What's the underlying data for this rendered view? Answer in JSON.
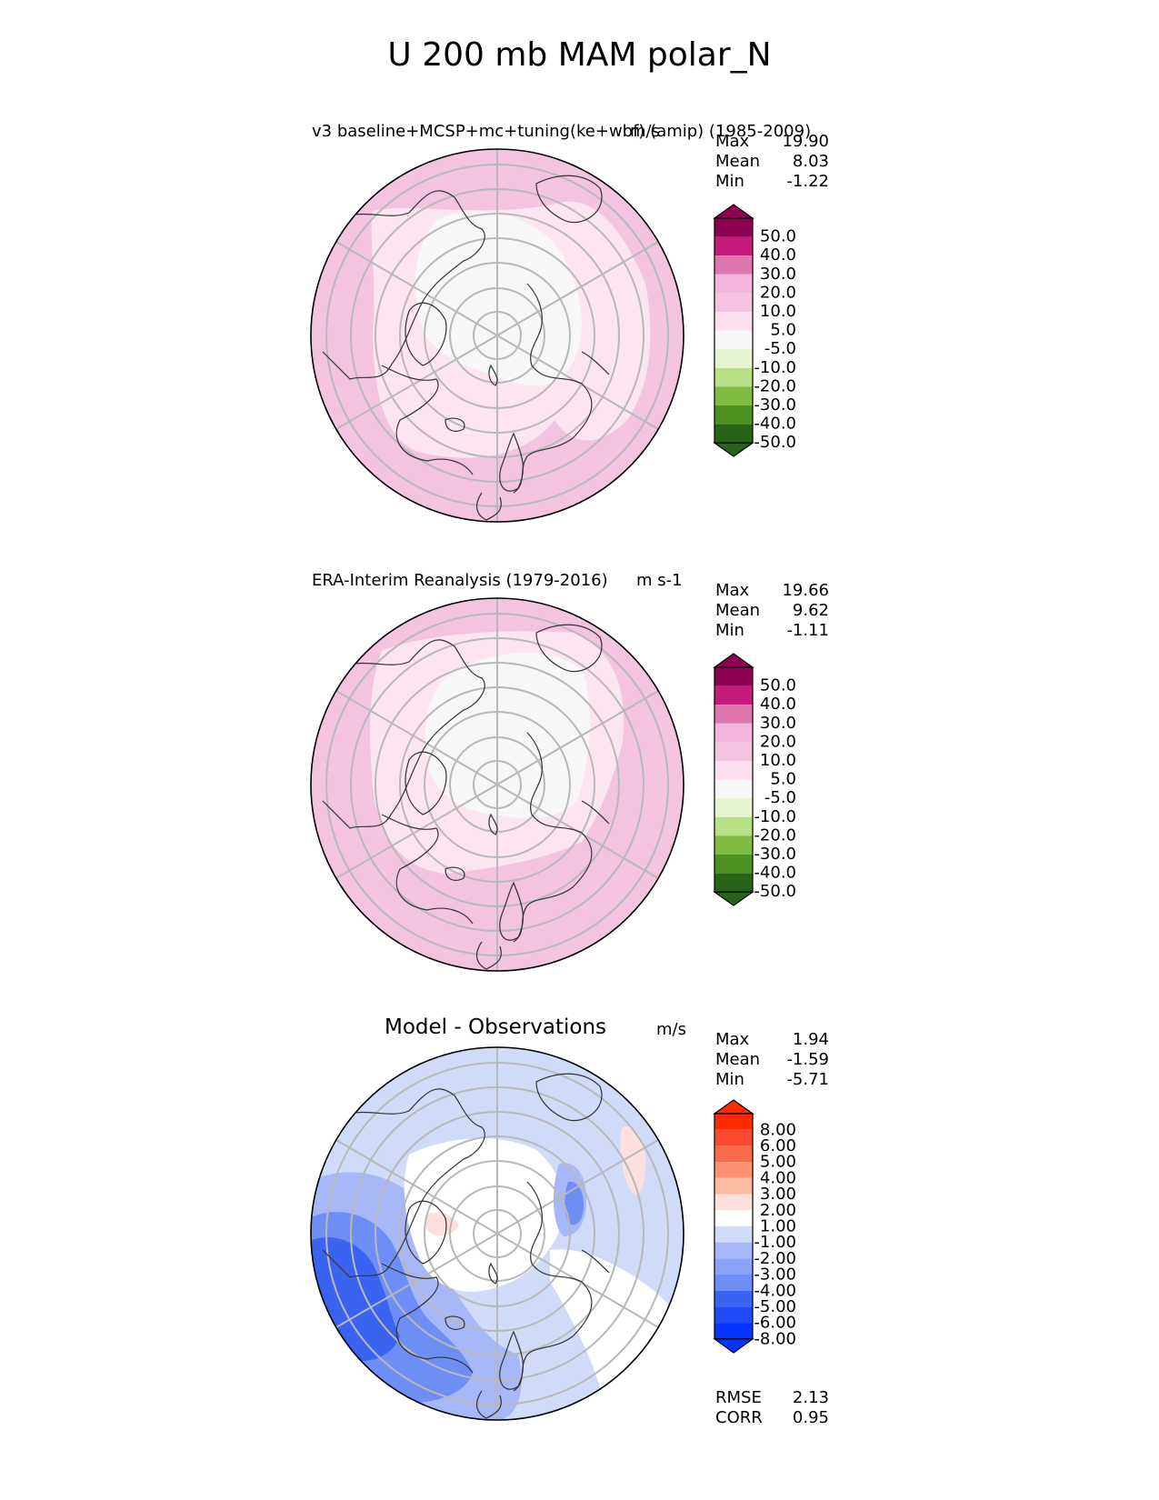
{
  "figure": {
    "title": "U 200 mb MAM polar_N",
    "colors": {
      "pink": [
        "#8e0152",
        "#c51b7d",
        "#de77ae",
        "#f1b6da",
        "#fde0ef"
      ],
      "neutral": "#f7f7f7",
      "green": [
        "#e6f5d0",
        "#b8e186",
        "#7fbc41",
        "#4d9221",
        "#276419"
      ],
      "diff": [
        "#0432ff",
        "#3a63f2",
        "#6f8ef5",
        "#a6b8f8",
        "#d0daf9",
        "#ffffff",
        "#fde0dd",
        "#fcbba1",
        "#fc9272",
        "#fb6a4a",
        "#ff2a00"
      ],
      "grid": "#b8b8b8",
      "coast": "#333333"
    }
  },
  "chart_data": [
    {
      "type": "heatmap",
      "projection": "north-polar-stereographic",
      "title": "v3 baseline+MCSP+mc+tuning(ke+wbf) (amip) (1985-2009)",
      "units": "m/s",
      "stats": [
        {
          "label": "Max",
          "value": "19.90"
        },
        {
          "label": "Mean",
          "value": "8.03"
        },
        {
          "label": "Min",
          "value": "-1.22"
        }
      ],
      "colorbar_ticks": [
        "50.0",
        "40.0",
        "30.0",
        "20.0",
        "10.0",
        "5.0",
        "-5.0",
        "-10.0",
        "-20.0",
        "-30.0",
        "-40.0",
        "-50.0"
      ],
      "levels": [
        -50,
        -40,
        -30,
        -20,
        -10,
        -5,
        5,
        10,
        20,
        30,
        40,
        50
      ]
    },
    {
      "type": "heatmap",
      "projection": "north-polar-stereographic",
      "title": "ERA-Interim Reanalysis (1979-2016)",
      "units": "m s-1",
      "stats": [
        {
          "label": "Max",
          "value": "19.66"
        },
        {
          "label": "Mean",
          "value": "9.62"
        },
        {
          "label": "Min",
          "value": "-1.11"
        }
      ],
      "colorbar_ticks": [
        "50.0",
        "40.0",
        "30.0",
        "20.0",
        "10.0",
        "5.0",
        "-5.0",
        "-10.0",
        "-20.0",
        "-30.0",
        "-40.0",
        "-50.0"
      ],
      "levels": [
        -50,
        -40,
        -30,
        -20,
        -10,
        -5,
        5,
        10,
        20,
        30,
        40,
        50
      ]
    },
    {
      "type": "heatmap",
      "projection": "north-polar-stereographic",
      "title": "Model - Observations",
      "units": "m/s",
      "stats": [
        {
          "label": "Max",
          "value": "1.94"
        },
        {
          "label": "Mean",
          "value": "-1.59"
        },
        {
          "label": "Min",
          "value": "-5.71"
        }
      ],
      "colorbar_ticks": [
        "8.00",
        "6.00",
        "5.00",
        "4.00",
        "3.00",
        "2.00",
        "1.00",
        "-1.00",
        "-2.00",
        "-3.00",
        "-4.00",
        "-5.00",
        "-6.00",
        "-8.00"
      ],
      "levels": [
        -8,
        -6,
        -5,
        -4,
        -3,
        -2,
        -1,
        1,
        2,
        3,
        4,
        5,
        6,
        8
      ],
      "metrics": [
        {
          "label": "RMSE",
          "value": "2.13"
        },
        {
          "label": "CORR",
          "value": "0.95"
        }
      ]
    }
  ]
}
